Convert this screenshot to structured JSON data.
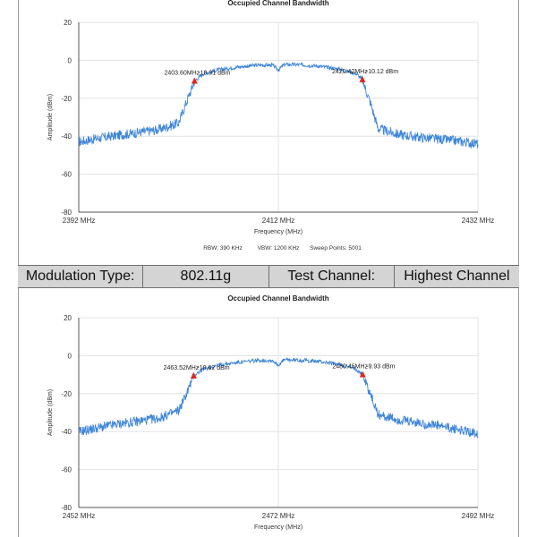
{
  "info_bar": {
    "modulation_label": "Modulation Type:",
    "modulation_value": "802.11g",
    "channel_label": "Test Channel:",
    "channel_value": "Highest Channel"
  },
  "chart_data": [
    {
      "type": "line",
      "title": "Occupied Channel Bandwidth",
      "xlabel": "Frequency (MHz)",
      "ylabel": "Amplitude (dBm)",
      "xlim": [
        2392,
        2432
      ],
      "ylim": [
        -80,
        20
      ],
      "x_ticks": [
        2392,
        2412,
        2432
      ],
      "x_tick_labels": [
        "2392 MHz",
        "2412 MHz",
        "2432 MHz"
      ],
      "y_ticks": [
        20,
        0,
        -20,
        -40,
        -60,
        -80
      ],
      "y_tick_labels": [
        "20",
        "0",
        "-20",
        "-40",
        "-60",
        "-80"
      ],
      "grid": true,
      "line_color": "#3f86d8",
      "marker_color": "#e0261c",
      "series": [
        {
          "x": [
            2392,
            2394,
            2396,
            2398,
            2400,
            2402,
            2402.8,
            2403.6,
            2404.5,
            2406,
            2408,
            2410,
            2411.4,
            2412,
            2412.6,
            2414,
            2416,
            2418,
            2419.8,
            2420.4,
            2421.2,
            2422,
            2424,
            2426,
            2428,
            2430,
            2432
          ],
          "y": [
            -43,
            -41,
            -39.5,
            -38,
            -36.5,
            -33,
            -22,
            -10.9,
            -7,
            -5,
            -3.5,
            -2.5,
            -2.5,
            -5,
            -2.2,
            -2.3,
            -3,
            -4.5,
            -7,
            -10.1,
            -22,
            -36,
            -39,
            -40.5,
            -41.5,
            -42.5,
            -44
          ]
        }
      ],
      "markers": [
        {
          "x": 2403.6,
          "y": -10.91,
          "label": "2403.60MHz",
          "value_label": "-10.91 dBm"
        },
        {
          "x": 2420.42,
          "y": -10.12,
          "label": "2420.42MHz",
          "value_label": "-10.12 dBm"
        }
      ],
      "footer": {
        "rbw": "RBW: 390 KHz",
        "vbw": "VBW: 1200 KHz",
        "sweep": "Sweep Points: 5001"
      }
    },
    {
      "type": "line",
      "title": "Occupied Channel Bandwidth",
      "xlabel": "Frequency (MHz)",
      "ylabel": "Amplitude (dBm)",
      "xlim": [
        2452,
        2492
      ],
      "ylim": [
        -80,
        20
      ],
      "x_ticks": [
        2452,
        2472,
        2492
      ],
      "x_tick_labels": [
        "2452 MHz",
        "2472 MHz",
        "2492 MHz"
      ],
      "y_ticks": [
        20,
        0,
        -20,
        -40,
        -60,
        -80
      ],
      "y_tick_labels": [
        "20",
        "0",
        "-20",
        "-40",
        "-60",
        "-80"
      ],
      "grid": true,
      "line_color": "#3f86d8",
      "marker_color": "#e0261c",
      "series": [
        {
          "x": [
            2452,
            2454,
            2456,
            2458,
            2460,
            2462,
            2462.8,
            2463.52,
            2464.5,
            2466,
            2468,
            2470,
            2471.4,
            2472,
            2472.6,
            2474,
            2476,
            2478,
            2479.8,
            2480.45,
            2481.2,
            2482,
            2484,
            2486,
            2488,
            2490,
            2492
          ],
          "y": [
            -40,
            -38,
            -36,
            -34.5,
            -33,
            -29,
            -20,
            -10.6,
            -7,
            -5,
            -3.5,
            -2.5,
            -2.5,
            -5,
            -2.2,
            -2.3,
            -3,
            -4.5,
            -7,
            -9.9,
            -20,
            -31,
            -34,
            -35.5,
            -37,
            -39,
            -41
          ]
        }
      ],
      "markers": [
        {
          "x": 2463.52,
          "y": -10.62,
          "label": "2463.52MHz",
          "value_label": "-10.62 dBm"
        },
        {
          "x": 2480.45,
          "y": -9.93,
          "label": "2480.45MHz",
          "value_label": "-9.93 dBm"
        }
      ]
    }
  ]
}
